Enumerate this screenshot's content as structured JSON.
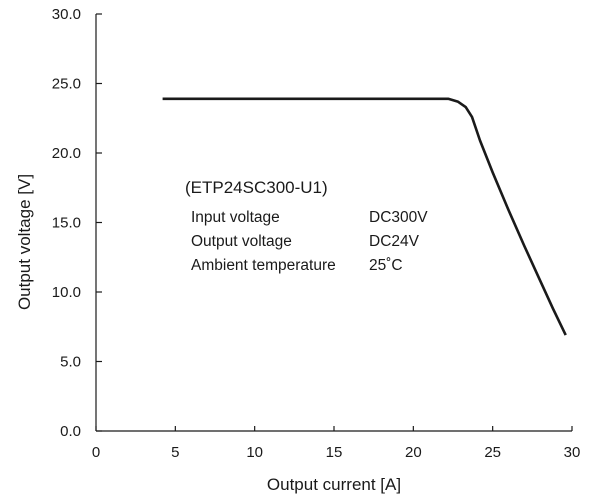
{
  "chart_data": {
    "type": "line",
    "xlabel": "Output current [A]",
    "ylabel": "Output voltage [V]",
    "xlim": [
      0,
      30
    ],
    "ylim": [
      0,
      30
    ],
    "x_ticks": [
      "0",
      "5",
      "10",
      "15",
      "20",
      "25",
      "30"
    ],
    "y_ticks": [
      "0.0",
      "5.0",
      "10.0",
      "15.0",
      "20.0",
      "25.0",
      "30.0"
    ],
    "grid": false,
    "series": [
      {
        "color": "#1a1a1a",
        "x": [
          4.2,
          10,
          15,
          20,
          22.2,
          22.8,
          23.3,
          23.7,
          24.2,
          25.0,
          26.0,
          27.0,
          28.0,
          28.8,
          29.6
        ],
        "y": [
          23.9,
          23.9,
          23.9,
          23.9,
          23.9,
          23.7,
          23.3,
          22.6,
          20.9,
          18.6,
          15.9,
          13.3,
          10.8,
          8.8,
          6.9
        ]
      }
    ],
    "annotation": {
      "title": "(ETP24SC300-U1)",
      "rows": [
        {
          "label": "Input voltage",
          "value": "DC300V"
        },
        {
          "label": "Output voltage",
          "value": "DC24V"
        },
        {
          "label": "Ambient temperature",
          "value": "25˚C"
        }
      ]
    }
  }
}
